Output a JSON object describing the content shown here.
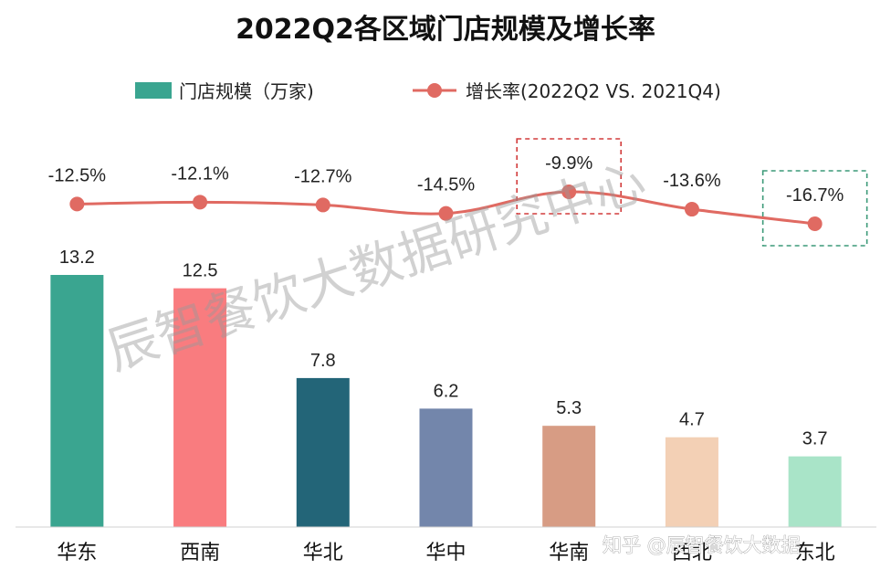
{
  "chart_data": {
    "type": "bar",
    "title": "2022Q2各区域门店规模及增长率",
    "categories": [
      "华东",
      "西南",
      "华北",
      "华中",
      "华南",
      "西北",
      "东北"
    ],
    "series": [
      {
        "name": "门店规模（万家)",
        "type": "bar",
        "values": [
          13.2,
          12.5,
          7.8,
          6.2,
          5.3,
          4.7,
          3.7
        ],
        "value_labels": [
          "13.2",
          "12.5",
          "7.8",
          "6.2",
          "5.3",
          "4.7",
          "3.7"
        ],
        "colors": [
          "#3aa590",
          "#f97c7f",
          "#236578",
          "#7386ab",
          "#d79c84",
          "#f3d0b5",
          "#a9e4c8"
        ]
      },
      {
        "name": "增长率(2022Q2 VS. 2021Q4)",
        "type": "line",
        "values": [
          -12.5,
          -12.1,
          -12.7,
          -14.5,
          -9.9,
          -13.6,
          -16.7
        ],
        "value_labels": [
          "-12.5%",
          "-12.1%",
          "-12.7%",
          "-14.5%",
          "-9.9%",
          "-13.6%",
          "-16.7%"
        ],
        "color": "#e06a62"
      }
    ],
    "highlights": [
      {
        "category": "华南",
        "style": "dashed-box",
        "color": "#d23b3b"
      },
      {
        "category": "东北",
        "style": "dashed-box",
        "color": "#3c9a78"
      }
    ],
    "legend_position": "top",
    "grid": false
  },
  "watermark": "辰智餐饮大数据研究中心",
  "credit": "知乎 @辰智餐饮大数据"
}
